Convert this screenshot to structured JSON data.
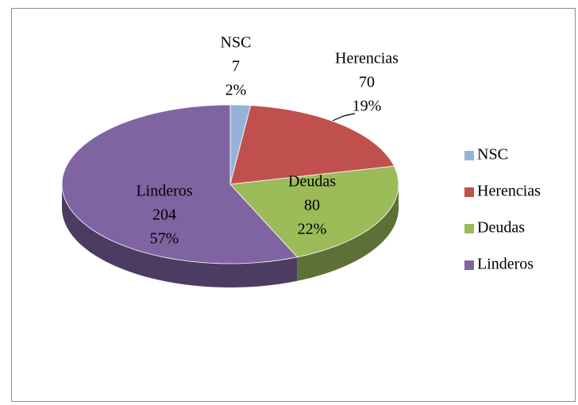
{
  "chart_data": {
    "type": "pie",
    "categories": [
      "NSC",
      "Herencias",
      "Deudas",
      "Linderos"
    ],
    "values": [
      7,
      70,
      80,
      204
    ],
    "percent_labels": [
      "2%",
      "19%",
      "22%",
      "57%"
    ],
    "colors": [
      "#95b3d7",
      "#c0504d",
      "#9bbb59",
      "#8064a2"
    ],
    "legend": "right"
  }
}
